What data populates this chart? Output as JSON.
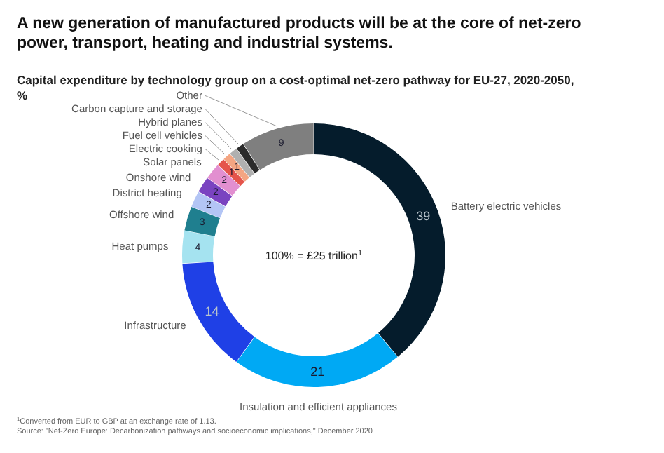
{
  "chart_data": {
    "type": "donut",
    "title": "A new generation of manufactured products will be at the core of net-zero power, transport, heating and industrial systems.",
    "subtitle": "Capital expenditure by technology group on a cost-optimal net-zero pathway for EU-27, 2020-2050, %",
    "categories": [
      "Battery electric vehicles",
      "Insulation and efficient appliances",
      "Infrastructure",
      "Heat pumps",
      "Offshore wind",
      "District heating",
      "Onshore wind",
      "Solar panels",
      "Electric cooking",
      "Fuel cell vehicles",
      "Hybrid planes",
      "Carbon capture and storage",
      "Other"
    ],
    "values": [
      39,
      21,
      14,
      4,
      3,
      2,
      2,
      2,
      1,
      1,
      1,
      1,
      9
    ],
    "colors": [
      "#051c2c",
      "#00a9f4",
      "#1f40e6",
      "#a5e3f0",
      "#1f7f8f",
      "#b3c5f5",
      "#7a43c0",
      "#e28fd0",
      "#e5544b",
      "#f4a582",
      "#b0b0b0",
      "#2b2b2b",
      "#7f7f7f"
    ],
    "value_labels": [
      "39",
      "21",
      "14",
      "4",
      "3",
      "2",
      "2",
      "2",
      "1",
      "1",
      null,
      null,
      "9"
    ],
    "legend": false,
    "annotations": [
      "100% = £25 trillion$^{1}$",
      "$^{1}$Converted from EUR to GBP at an exchange rate of 1.13.",
      "Source: \"Net-Zero Europe: Decarbonization pathways and socioeconomic implications,\" December 2020"
    ]
  }
}
